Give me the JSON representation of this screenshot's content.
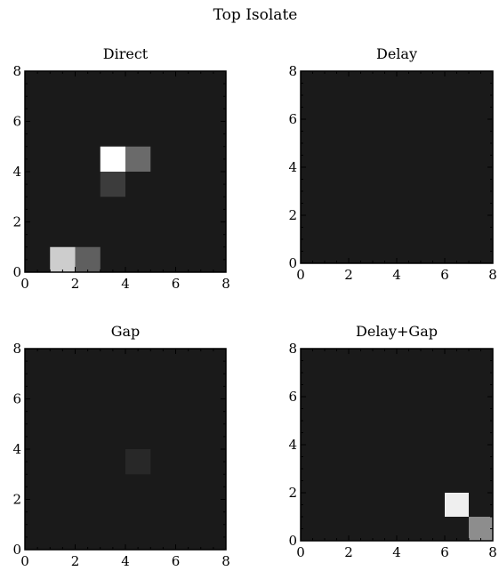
{
  "figure": {
    "title": "Top Isolate"
  },
  "chart_data": [
    {
      "type": "heatmap",
      "title": "Direct",
      "xlim": [
        0,
        8
      ],
      "ylim": [
        0,
        8
      ],
      "xticks": [
        0,
        2,
        4,
        6,
        8
      ],
      "yticks": [
        0,
        2,
        4,
        6,
        8
      ],
      "grid": false,
      "background_value": 0,
      "cells": [
        {
          "x": 3,
          "y": 4,
          "value": 1.0
        },
        {
          "x": 4,
          "y": 4,
          "value": 0.35
        },
        {
          "x": 3,
          "y": 3,
          "value": 0.15
        },
        {
          "x": 1,
          "y": 0,
          "value": 0.78
        },
        {
          "x": 2,
          "y": 0,
          "value": 0.3
        }
      ]
    },
    {
      "type": "heatmap",
      "title": "Delay",
      "xlim": [
        0,
        8
      ],
      "ylim": [
        0,
        8
      ],
      "xticks": [
        0,
        2,
        4,
        6,
        8
      ],
      "yticks": [
        0,
        2,
        4,
        6,
        8
      ],
      "grid": false,
      "background_value": 0,
      "cells": []
    },
    {
      "type": "heatmap",
      "title": "Gap",
      "xlim": [
        0,
        8
      ],
      "ylim": [
        0,
        8
      ],
      "xticks": [
        0,
        2,
        4,
        6,
        8
      ],
      "yticks": [
        0,
        2,
        4,
        6,
        8
      ],
      "grid": false,
      "background_value": 0,
      "cells": [
        {
          "x": 4,
          "y": 3,
          "value": 0.06
        }
      ]
    },
    {
      "type": "heatmap",
      "title": "Delay+Gap",
      "xlim": [
        0,
        8
      ],
      "ylim": [
        0,
        8
      ],
      "xticks": [
        0,
        2,
        4,
        6,
        8
      ],
      "yticks": [
        0,
        2,
        4,
        6,
        8
      ],
      "grid": false,
      "background_value": 0,
      "cells": [
        {
          "x": 6,
          "y": 1,
          "value": 0.93
        },
        {
          "x": 7,
          "y": 0,
          "value": 0.5
        }
      ]
    }
  ]
}
